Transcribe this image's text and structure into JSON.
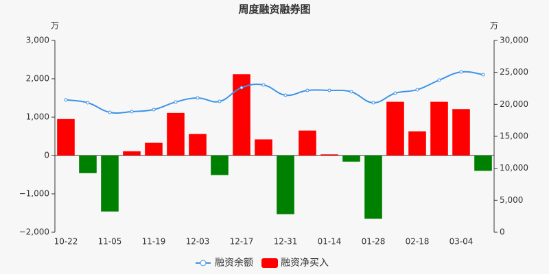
{
  "chart_data": {
    "type": "bar",
    "title": "周度融资融券图",
    "y_unit": "万",
    "y2_unit": "万",
    "categories": [
      "10-22",
      null,
      "11-05",
      null,
      "11-19",
      null,
      "12-03",
      null,
      "12-17",
      null,
      "12-31",
      null,
      "01-14",
      null,
      "01-28",
      null,
      "02-18",
      null,
      "03-04",
      null
    ],
    "series": [
      {
        "name": "融资余额",
        "type": "line",
        "axis": "y2",
        "color": "#3a93e8",
        "values": [
          20700,
          20250,
          18750,
          18860,
          19180,
          20360,
          21000,
          20460,
          22610,
          23040,
          21430,
          22180,
          22180,
          21960,
          20250,
          21750,
          22290,
          23790,
          25070,
          24640
        ]
      },
      {
        "name": "融资净买入",
        "type": "bar",
        "color": "#ff0000",
        "negative_color": "#008000",
        "values": [
          950,
          -460,
          -1460,
          110,
          330,
          1110,
          560,
          -510,
          2120,
          420,
          -1530,
          650,
          30,
          -160,
          -1650,
          1400,
          630,
          1400,
          1210,
          -400
        ]
      }
    ],
    "ylim": [
      -2000,
      3000
    ],
    "yticks": [
      {
        "value": -2000,
        "label": "−2,000"
      },
      {
        "value": -1000,
        "label": "−1,000"
      },
      0,
      {
        "value": 1000,
        "label": "1,000"
      },
      {
        "value": 2000,
        "label": "2,000"
      },
      {
        "value": 3000,
        "label": "3,000"
      }
    ],
    "y2lim": [
      0,
      30000
    ],
    "y2ticks": [
      0,
      {
        "value": 5000,
        "label": "5,000"
      },
      {
        "value": 10000,
        "label": "10,000"
      },
      {
        "value": 15000,
        "label": "15,000"
      },
      {
        "value": 20000,
        "label": "20,000"
      },
      {
        "value": 25000,
        "label": "25,000"
      },
      {
        "value": 30000,
        "label": "30,000"
      }
    ],
    "legend": "bottom"
  }
}
